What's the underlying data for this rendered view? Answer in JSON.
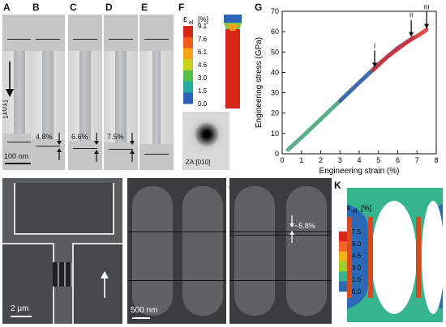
{
  "panels": {
    "A": "A",
    "B": "B",
    "C": "C",
    "D": "D",
    "E": "E",
    "F": "F",
    "G": "G",
    "H": "H",
    "I": "I",
    "J": "J",
    "K": "K"
  },
  "tem": {
    "direction_label": "[101]",
    "scale_bar": "100 nm",
    "strain_B": "4.8%",
    "strain_C": "6.6%",
    "strain_D": "7.5%"
  },
  "colorbar_F": {
    "label": "ε",
    "subscript": "el",
    "unit": "[%]",
    "ticks": [
      "9.1",
      "7.6",
      "6.1",
      "4.6",
      "3.0",
      "1.5",
      "0.0"
    ],
    "colors": [
      "#d62718",
      "#ee5b1f",
      "#f7a21b",
      "#c9d21f",
      "#54bf49",
      "#27a8a4",
      "#2a63b8"
    ]
  },
  "diffraction": {
    "label": "ZA:[010]"
  },
  "chart_data": {
    "type": "line",
    "xlabel": "Engineering strain (%)",
    "ylabel": "Engineering stress (GPa)",
    "xlim": [
      0,
      8
    ],
    "ylim": [
      0,
      70
    ],
    "xticks": [
      "0",
      "1",
      "2",
      "3",
      "4",
      "5",
      "6",
      "7",
      "8"
    ],
    "yticks": [
      "0",
      "10",
      "20",
      "30",
      "40",
      "50",
      "60",
      "70"
    ],
    "grid": false,
    "series": [
      {
        "color": "#3d9f72",
        "x": [
          0.3,
          1.0,
          2.0,
          3.0,
          4.0,
          4.8
        ],
        "y": [
          2,
          8,
          17,
          26,
          35,
          42
        ]
      },
      {
        "color": "#3c5fb0",
        "x": [
          3.0,
          4.0,
          5.0,
          6.0,
          6.8
        ],
        "y": [
          26,
          35,
          44,
          52,
          57
        ]
      },
      {
        "color": "#d62c2c",
        "x": [
          4.7,
          5.5,
          6.5,
          7.2,
          7.5
        ],
        "y": [
          41,
          48,
          55,
          59,
          61
        ]
      }
    ],
    "annotations": [
      {
        "text": "I",
        "x": 4.8,
        "y": 42
      },
      {
        "text": "II",
        "x": 6.7,
        "y": 57
      },
      {
        "text": "III",
        "x": 7.5,
        "y": 61
      }
    ]
  },
  "sem": {
    "scale_H": "2 μm",
    "scale_I": "500 nm",
    "strain_J": "~5.8%"
  },
  "colorbar_K": {
    "label": "ε",
    "subscript": "el",
    "unit": "[%]",
    "ticks": [
      "7.5",
      "6.0",
      "4.5",
      "3.0",
      "1.5",
      "0.0"
    ],
    "colors": [
      "#d62718",
      "#ef6a1f",
      "#f5b21c",
      "#9fcb2c",
      "#35b48e",
      "#2b6ab6"
    ]
  }
}
